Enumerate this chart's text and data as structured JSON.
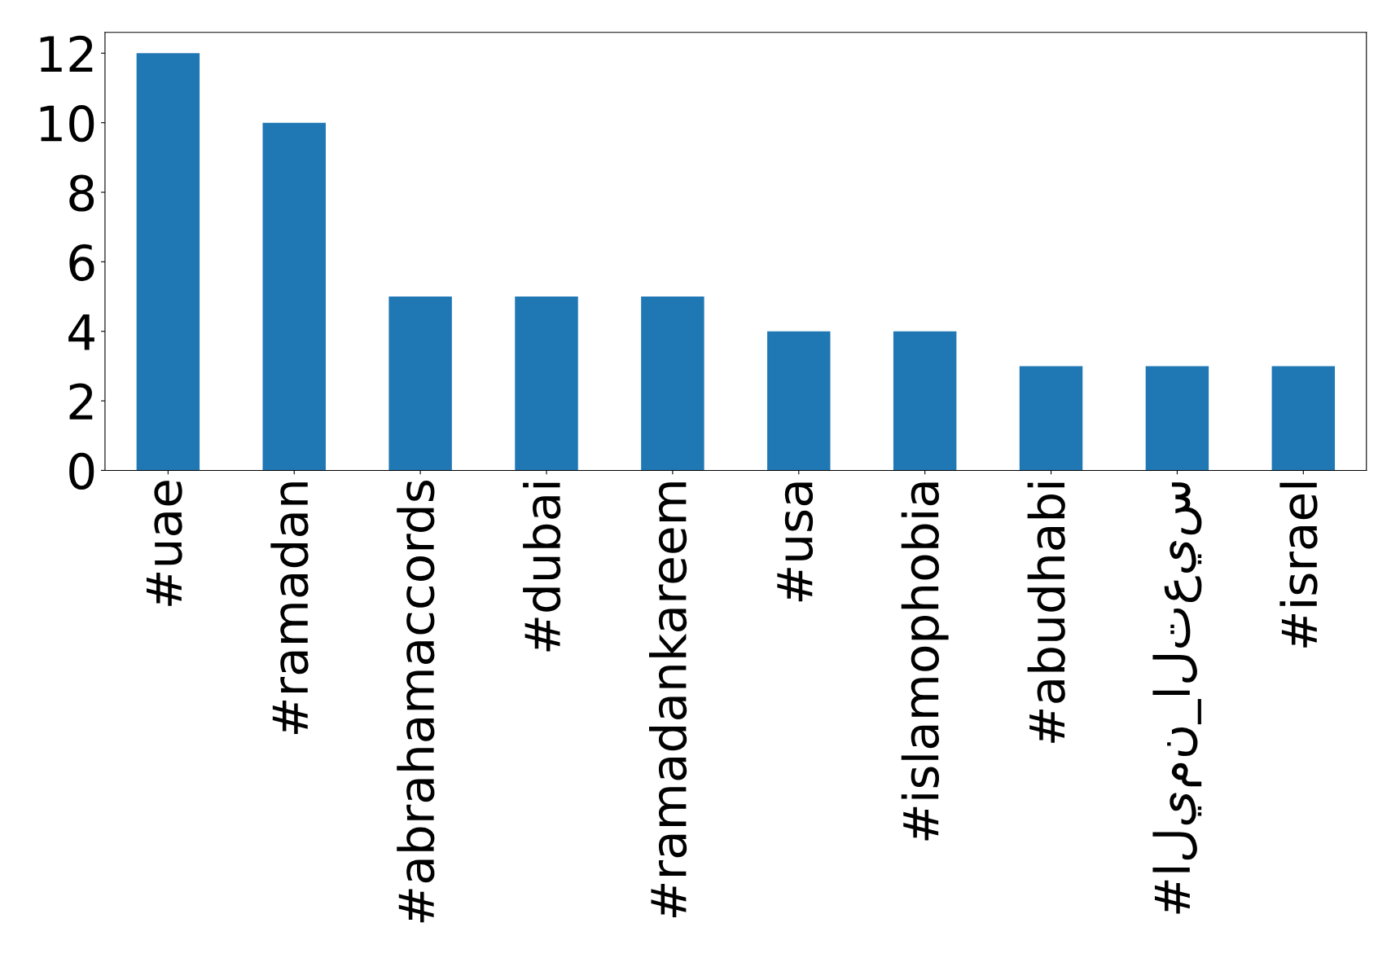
{
  "chart_data": {
    "type": "bar",
    "categories": [
      "#uae",
      "#ramadan",
      "#abrahamaccords",
      "#dubai",
      "#ramadankareem",
      "#usa",
      "#islamophobia",
      "#abudhabi",
      "#اليمن_التعيس",
      "#israel"
    ],
    "values": [
      12,
      10,
      5,
      5,
      5,
      4,
      4,
      3,
      3,
      3
    ],
    "color": "#1f77b4",
    "ylim": [
      0,
      12.6
    ],
    "yticks": [
      0,
      2,
      4,
      6,
      8,
      10,
      12
    ],
    "grid": false
  }
}
